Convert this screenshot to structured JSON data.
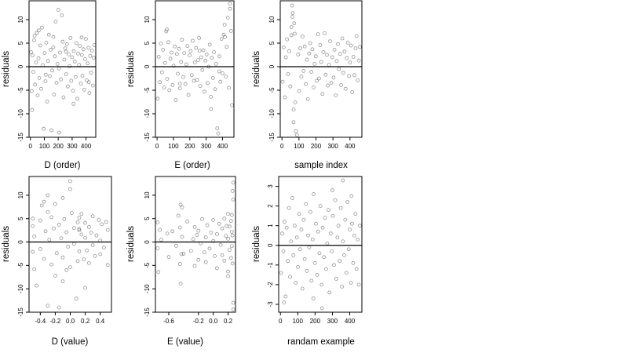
{
  "chart_data": [
    {
      "type": "scatter",
      "xlabel": "D (order)",
      "ylabel": "residuals",
      "xlim": [
        -10,
        470
      ],
      "ylim": [
        -15,
        14
      ],
      "xticks": [
        0,
        100,
        200,
        300,
        400
      ],
      "xtick_labels": [
        "0",
        "100",
        "200",
        "300",
        "400"
      ],
      "yticks": [
        -15,
        -10,
        -5,
        0,
        5,
        10
      ],
      "ytick_labels": [
        "-15",
        "-10",
        "-5",
        "0",
        "5",
        "10"
      ],
      "zero_line": true,
      "grid": false,
      "x": [
        4,
        9,
        15,
        21,
        27,
        33,
        40,
        46,
        52,
        58,
        64,
        71,
        77,
        83,
        89,
        95,
        102,
        108,
        114,
        120,
        126,
        133,
        139,
        145,
        151,
        157,
        164,
        170,
        176,
        182,
        188,
        195,
        201,
        207,
        213,
        219,
        226,
        232,
        238,
        244,
        250,
        257,
        263,
        269,
        275,
        281,
        288,
        294,
        300,
        306,
        312,
        319,
        325,
        331,
        337,
        343,
        350,
        356,
        362,
        368,
        374,
        381,
        387,
        393,
        399,
        405,
        412,
        418,
        424,
        430,
        436,
        443,
        449,
        455,
        460,
        12,
        60,
        110,
        165,
        205,
        255,
        310,
        370,
        420,
        30
      ],
      "y": [
        3.1,
        -5.2,
        2.4,
        -1.1,
        5.6,
        -3.8,
        0.9,
        7.2,
        -6.1,
        1.8,
        -2.4,
        4.5,
        -4.7,
        8.3,
        0.3,
        -13.2,
        2.9,
        -3.1,
        5.1,
        -7.4,
        1.2,
        6.8,
        -2.0,
        3.6,
        -13.5,
        -0.8,
        4.1,
        -5.9,
        2.2,
        9.6,
        -3.4,
        0.6,
        12.1,
        -14.0,
        3.0,
        -2.7,
        10.9,
        5.3,
        -6.5,
        1.5,
        3.9,
        -1.6,
        4.8,
        -4.2,
        2.6,
        0.1,
        6.1,
        -3.0,
        2.0,
        -5.1,
        3.3,
        1.1,
        -2.2,
        5.0,
        -6.8,
        2.8,
        0.4,
        4.4,
        -3.6,
        6.2,
        -1.9,
        3.7,
        -4.9,
        1.6,
        5.9,
        -2.9,
        0.7,
        4.0,
        -5.6,
        2.3,
        -1.3,
        3.4,
        -4.0,
        1.9,
        4.6,
        -9.2,
        7.7,
        -1.7,
        6.3,
        -0.4,
        3.2,
        -7.9,
        2.5,
        -3.3,
        6.6
      ]
    },
    {
      "type": "scatter",
      "xlabel": "E (order)",
      "ylabel": "residuals",
      "xlim": [
        -10,
        470
      ],
      "ylim": [
        -15,
        14
      ],
      "xticks": [
        0,
        100,
        200,
        300,
        400
      ],
      "xtick_labels": [
        "0",
        "100",
        "200",
        "300",
        "400"
      ],
      "yticks": [
        -15,
        -10,
        -5,
        0,
        5,
        10
      ],
      "ytick_labels": [
        "-15",
        "-10",
        "-5",
        "0",
        "5",
        "10"
      ],
      "zero_line": true,
      "grid": false,
      "x": [
        4,
        10,
        17,
        23,
        30,
        36,
        43,
        49,
        56,
        62,
        69,
        75,
        82,
        88,
        95,
        101,
        108,
        114,
        121,
        127,
        134,
        140,
        147,
        153,
        160,
        166,
        173,
        179,
        186,
        192,
        199,
        205,
        212,
        218,
        225,
        231,
        238,
        244,
        251,
        257,
        264,
        270,
        277,
        283,
        290,
        296,
        303,
        309,
        316,
        322,
        329,
        335,
        342,
        348,
        355,
        361,
        368,
        374,
        381,
        387,
        394,
        400,
        407,
        413,
        420,
        426,
        433,
        439,
        446,
        452,
        458,
        60,
        140,
        260,
        330,
        380,
        415,
        445
      ],
      "y": [
        -6.8,
        2.1,
        -3.3,
        4.9,
        -1.2,
        3.6,
        -4.4,
        0.8,
        7.5,
        -2.6,
        5.2,
        -5.0,
        1.7,
        3.0,
        -3.9,
        0.2,
        4.3,
        -7.1,
        2.7,
        -1.5,
        3.8,
        -4.6,
        1.0,
        5.7,
        -2.2,
        2.9,
        -3.7,
        0.5,
        4.4,
        -6.0,
        2.4,
        3.3,
        -1.8,
        5.5,
        -3.0,
        0.9,
        4.0,
        -2.8,
        1.4,
        6.1,
        -4.1,
        2.0,
        -0.7,
        3.5,
        -5.3,
        1.3,
        2.6,
        -3.5,
        0.0,
        4.7,
        -6.4,
        1.9,
        -2.4,
        3.1,
        -4.8,
        0.6,
        -13.1,
        -14.2,
        2.2,
        -3.2,
        5.9,
        -1.4,
        6.8,
        8.9,
        -2.1,
        4.2,
        10.4,
        -4.5,
        12.3,
        7.6,
        -8.2,
        7.9,
        -3.6,
        3.4,
        -9.0,
        -1.0,
        6.3,
        13.4
      ]
    },
    {
      "type": "scatter",
      "xlabel": "sample index",
      "ylabel": "residuals",
      "xlim": [
        -10,
        470
      ],
      "ylim": [
        -15,
        14
      ],
      "xticks": [
        0,
        100,
        200,
        300,
        400
      ],
      "xtick_labels": [
        "0",
        "100",
        "200",
        "300",
        "400"
      ],
      "yticks": [
        -15,
        -10,
        -5,
        0,
        5,
        10
      ],
      "ytick_labels": [
        "-15",
        "-10",
        "-5",
        "0",
        "5",
        "10"
      ],
      "zero_line": true,
      "grid": false,
      "x": [
        4,
        10,
        17,
        23,
        30,
        36,
        43,
        49,
        56,
        62,
        69,
        75,
        82,
        88,
        95,
        101,
        108,
        114,
        121,
        127,
        134,
        140,
        147,
        153,
        160,
        166,
        173,
        179,
        186,
        192,
        199,
        205,
        212,
        218,
        225,
        231,
        238,
        244,
        251,
        257,
        264,
        270,
        277,
        283,
        290,
        296,
        303,
        309,
        316,
        322,
        329,
        335,
        342,
        348,
        355,
        361,
        368,
        374,
        381,
        387,
        394,
        400,
        407,
        413,
        420,
        426,
        433,
        439,
        446,
        452,
        458,
        60,
        64,
        72,
        68,
        55,
        78
      ],
      "y": [
        -3.2,
        4.1,
        -6.5,
        2.0,
        5.8,
        -1.6,
        3.3,
        -4.2,
        8.4,
        10.6,
        -9.1,
        7.0,
        -13.7,
        -14.5,
        2.6,
        -5.2,
        3.9,
        -2.1,
        6.4,
        -0.9,
        4.3,
        -3.7,
        1.5,
        -6.9,
        2.8,
        5.0,
        -1.1,
        3.7,
        -4.4,
        0.6,
        2.2,
        -3.0,
        6.9,
        -2.5,
        4.6,
        1.0,
        -5.8,
        3.1,
        7.1,
        -1.7,
        2.5,
        -4.0,
        0.4,
        5.4,
        -3.4,
        2.0,
        -2.3,
        3.6,
        -6.1,
        1.2,
        4.8,
        -0.5,
        2.7,
        -3.9,
        6.0,
        -1.3,
        3.2,
        -4.7,
        1.8,
        5.1,
        -2.0,
        0.9,
        4.5,
        -5.4,
        2.1,
        -1.8,
        3.9,
        6.5,
        -2.9,
        1.3,
        4.2,
        13.0,
        11.4,
        9.2,
        -11.8,
        6.7,
        -7.6
      ]
    },
    {
      "type": "scatter",
      "xlabel": "D (value)",
      "ylabel": "residuals",
      "xlim": [
        -0.55,
        0.55
      ],
      "ylim": [
        -15,
        14
      ],
      "xticks": [
        -0.4,
        -0.2,
        0.0,
        0.2,
        0.4
      ],
      "xtick_labels": [
        "-0.4",
        "-0.2",
        "0.0",
        "0.2",
        "0.4"
      ],
      "yticks": [
        -15,
        -10,
        -5,
        0,
        5,
        10
      ],
      "ytick_labels": [
        "-15",
        "-10",
        "-5",
        "0",
        "5",
        "10"
      ],
      "zero_line": true,
      "grid": false,
      "x": [
        -0.5,
        -0.5,
        -0.5,
        -0.48,
        -0.48,
        -0.45,
        -0.4,
        -0.4,
        -0.38,
        -0.35,
        -0.33,
        -0.3,
        -0.3,
        -0.28,
        -0.25,
        -0.25,
        -0.22,
        -0.2,
        -0.2,
        -0.18,
        -0.15,
        -0.15,
        -0.12,
        -0.1,
        -0.1,
        -0.08,
        -0.05,
        -0.05,
        -0.03,
        0.0,
        0.0,
        0.02,
        0.05,
        0.05,
        0.08,
        0.1,
        0.1,
        0.12,
        0.12,
        0.12,
        0.15,
        0.15,
        0.18,
        0.2,
        0.2,
        0.22,
        0.25,
        0.25,
        0.28,
        0.3,
        0.3,
        0.33,
        0.35,
        0.38,
        0.4,
        0.4,
        0.42,
        0.45,
        0.48,
        0.5,
        0.5,
        -0.35,
        -0.3,
        -0.1,
        0.0,
        0.12,
        0.2
      ],
      "y": [
        3.4,
        -2.1,
        5.0,
        -5.8,
        1.2,
        -9.3,
        4.6,
        -1.5,
        7.8,
        -3.6,
        2.3,
        6.4,
        -13.6,
        0.5,
        5.3,
        -4.8,
        2.9,
        -7.2,
        8.1,
        -2.4,
        3.7,
        -14.0,
        0.8,
        9.4,
        -3.3,
        4.9,
        -6.0,
        2.1,
        -1.0,
        11.3,
        -5.4,
        6.2,
        -0.4,
        3.0,
        -12.1,
        4.2,
        -4.1,
        2.5,
        5.2,
        -2.0,
        1.6,
        6.0,
        -3.7,
        0.9,
        4.1,
        -1.8,
        3.2,
        -4.5,
        2.0,
        5.5,
        -0.7,
        -3.0,
        1.4,
        4.7,
        -2.6,
        0.3,
        3.8,
        -1.2,
        4.3,
        2.6,
        -4.9,
        8.6,
        10.0,
        -8.4,
        13.0,
        2.8,
        -9.8
      ]
    },
    {
      "type": "scatter",
      "xlabel": "E (value)",
      "ylabel": "residuals",
      "xlim": [
        -0.78,
        0.3
      ],
      "ylim": [
        -15,
        14
      ],
      "xticks": [
        -0.6,
        -0.2,
        0.0,
        0.2
      ],
      "xtick_labels": [
        "-0.6",
        "-0.2",
        "0.0",
        "0.2"
      ],
      "yticks": [
        -15,
        -10,
        -5,
        0,
        5,
        10
      ],
      "ytick_labels": [
        "-15",
        "-10",
        "-5",
        "0",
        "5",
        "10"
      ],
      "zero_line": true,
      "grid": false,
      "x": [
        -0.75,
        -0.75,
        -0.74,
        -0.72,
        -0.7,
        -0.62,
        -0.6,
        -0.55,
        -0.5,
        -0.47,
        -0.45,
        -0.45,
        -0.44,
        -0.42,
        -0.42,
        -0.4,
        -0.35,
        -0.3,
        -0.27,
        -0.25,
        -0.25,
        -0.22,
        -0.2,
        -0.2,
        -0.17,
        -0.15,
        -0.12,
        -0.1,
        -0.1,
        -0.08,
        -0.05,
        -0.03,
        0.0,
        0.0,
        0.02,
        0.05,
        0.05,
        0.08,
        0.1,
        0.12,
        0.12,
        0.15,
        0.15,
        0.17,
        0.18,
        0.2,
        0.2,
        0.2,
        0.22,
        0.22,
        0.24,
        0.24,
        0.25,
        0.25,
        0.25,
        0.26,
        0.26,
        0.27,
        0.27,
        0.27,
        -0.44,
        -0.43,
        0.2,
        0.26,
        0.27
      ],
      "y": [
        4.2,
        -1.3,
        -6.4,
        2.6,
        0.5,
        1.8,
        -3.2,
        2.3,
        -0.8,
        5.6,
        -4.7,
        3.1,
        -8.9,
        1.1,
        7.4,
        -2.5,
        4.4,
        -1.9,
        0.6,
        -5.1,
        3.2,
        1.5,
        -3.8,
        2.4,
        -0.3,
        4.9,
        -2.2,
        1.0,
        -4.3,
        3.6,
        -1.4,
        2.0,
        0.2,
        4.7,
        -3.0,
        1.7,
        -5.6,
        3.9,
        -0.6,
        2.9,
        -2.8,
        5.0,
        -4.0,
        1.3,
        3.4,
        -6.3,
        0.7,
        6.0,
        -1.7,
        3.3,
        4.5,
        -3.4,
        2.2,
        -0.9,
        5.8,
        1.4,
        -4.6,
        9.1,
        12.7,
        -13.0,
        8.0,
        -2.6,
        -7.3,
        10.9,
        -14.4
      ]
    },
    {
      "type": "scatter",
      "xlabel": "randam example",
      "ylabel": "residuals",
      "xlim": [
        -10,
        470
      ],
      "ylim": [
        -3.4,
        3.5
      ],
      "xticks": [
        0,
        100,
        200,
        300,
        400
      ],
      "xtick_labels": [
        "0",
        "100",
        "200",
        "300",
        "400"
      ],
      "yticks": [
        -3,
        -2,
        -1,
        0,
        1,
        2,
        3
      ],
      "ytick_labels": [
        "-3",
        "-2",
        "-1",
        "0",
        "1",
        "2",
        "3"
      ],
      "zero_line": true,
      "grid": false,
      "x": [
        4,
        10,
        17,
        23,
        30,
        36,
        43,
        49,
        56,
        62,
        69,
        75,
        82,
        88,
        95,
        101,
        108,
        114,
        121,
        127,
        134,
        140,
        147,
        153,
        160,
        166,
        173,
        179,
        186,
        192,
        199,
        205,
        212,
        218,
        225,
        231,
        238,
        244,
        251,
        257,
        264,
        270,
        277,
        283,
        290,
        296,
        303,
        309,
        316,
        322,
        329,
        335,
        342,
        348,
        355,
        361,
        368,
        374,
        381,
        387,
        394,
        400,
        407,
        413,
        420,
        426,
        433,
        439,
        446,
        452,
        458,
        20,
        240,
        300,
        360,
        410,
        190
      ],
      "y": [
        -1.4,
        0.6,
        -0.3,
        1.2,
        -2.6,
        0.9,
        -0.8,
        1.9,
        -1.6,
        0.2,
        2.4,
        -0.5,
        1.0,
        -1.9,
        0.4,
        -1.1,
        1.6,
        -0.2,
        0.8,
        -2.2,
        1.3,
        -0.7,
        2.1,
        -1.3,
        0.5,
        -0.1,
        1.7,
        -1.8,
        0.3,
        2.6,
        -0.9,
        1.1,
        -1.5,
        0.7,
        -0.4,
        2.0,
        -2.0,
        0.9,
        -0.6,
        1.4,
        -1.2,
        0.1,
        1.8,
        -2.4,
        0.6,
        -0.3,
        1.5,
        -1.0,
        2.3,
        -1.7,
        0.4,
        1.0,
        -0.8,
        1.9,
        -2.1,
        0.2,
        -0.5,
        1.3,
        -1.4,
        2.2,
        -0.2,
        0.8,
        -1.9,
        1.1,
        -0.9,
        0.5,
        1.6,
        -1.2,
        0.3,
        -2.0,
        1.0,
        -2.9,
        -3.2,
        2.8,
        3.3,
        2.5,
        -2.7
      ]
    }
  ]
}
